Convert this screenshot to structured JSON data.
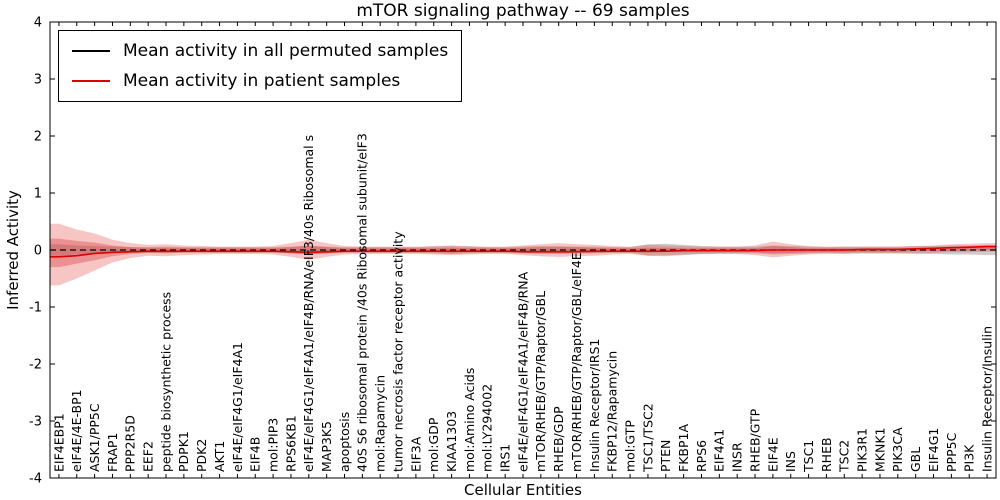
{
  "chart_data": {
    "type": "line",
    "title": "mTOR signaling pathway -- 69 samples",
    "xlabel": "Cellular Entities",
    "ylabel": "Inferred Activity",
    "ylim": [
      -4,
      4
    ],
    "yticks": [
      -4,
      -3,
      -2,
      -1,
      0,
      1,
      2,
      3,
      4
    ],
    "legend_position": "upper left",
    "grid": false,
    "categories": [
      "EIF4EBP1",
      "eIF4E/4E-BP1",
      "ASK1/PP5C",
      "FRAP1",
      "PPP2R5D",
      "EEF2",
      "peptide biosynthetic process",
      "PDPK1",
      "PDK2",
      "AKT1",
      "eIF4E/eIF4G1/eIF4A1",
      "EIF4B",
      "mol:PIP3",
      "RPS6KB1",
      "eIF4E/eIF4G1/eIF4A1/eIF4B/RNA/eIF3/40s Ribosomal s",
      "MAP3K5",
      "apoptosis",
      "40S S6 ribosomal protein /40s Ribosomal subunit/eIF3",
      "mol:Rapamycin",
      "tumor necrosis factor receptor activity",
      "EIF3A",
      "mol:GDP",
      "KIAA1303",
      "mol:Amino Acids",
      "mol:LY294002",
      "IRS1",
      "eIF4E/eIF4G1/eIF4A1/eIF4B/RNA",
      "mTOR/RHEB/GTP/Raptor/GBL",
      "RHEB/GDP",
      "mTOR/RHEB/GTP/Raptor/GBL/eIF4E",
      "Insulin Receptor/IRS1",
      "FKBP12/Rapamycin",
      "mol:GTP",
      "TSC1/TSC2",
      "PTEN",
      "FKBP1A",
      "RPS6",
      "EIF4A1",
      "INSR",
      "RHEB/GTP",
      "EIF4E",
      "INS",
      "TSC1",
      "RHEB",
      "TSC2",
      "PIK3R1",
      "MKNK1",
      "PIK3CA",
      "GBL",
      "EIF4G1",
      "PPP5C",
      "PI3K",
      "Insulin Receptor/Insulin"
    ],
    "series": [
      {
        "id": "permuted-mean",
        "label": "Mean activity in all permuted samples",
        "color": "#000000",
        "width": 1.2,
        "dash": "6,4",
        "values": [
          0,
          0,
          0,
          0,
          0,
          0,
          0,
          0,
          0,
          0,
          0,
          0,
          0,
          0,
          0,
          0,
          0,
          0,
          0,
          0,
          0,
          0,
          0,
          0,
          0,
          0,
          0,
          0,
          0,
          0,
          0,
          0,
          0,
          0,
          0,
          0,
          0,
          0,
          0,
          0,
          0,
          0,
          0,
          0,
          0,
          0,
          0,
          0,
          0,
          0,
          0,
          0,
          0
        ]
      },
      {
        "id": "patient-mean",
        "label": "Mean activity in patient samples",
        "color": "#dd0000",
        "width": 1.6,
        "dash": "",
        "values": [
          -0.12,
          -0.1,
          -0.06,
          -0.04,
          -0.03,
          -0.02,
          -0.02,
          -0.02,
          -0.02,
          -0.02,
          -0.02,
          -0.02,
          -0.02,
          -0.03,
          -0.04,
          -0.03,
          -0.02,
          -0.02,
          -0.02,
          -0.02,
          -0.02,
          -0.02,
          -0.02,
          -0.02,
          -0.02,
          -0.02,
          -0.03,
          -0.03,
          -0.03,
          -0.03,
          -0.02,
          -0.02,
          -0.02,
          -0.02,
          -0.02,
          -0.01,
          -0.01,
          -0.01,
          -0.01,
          -0.01,
          0.0,
          0.0,
          0.0,
          0.0,
          0.0,
          0.01,
          0.01,
          0.01,
          0.02,
          0.03,
          0.04,
          0.05,
          0.06
        ]
      }
    ],
    "bands": [
      {
        "id": "permuted-range",
        "color": "#909090",
        "opacity": 0.45,
        "hi": [
          0.1,
          0.08,
          0.07,
          0.06,
          0.05,
          0.05,
          0.06,
          0.05,
          0.05,
          0.05,
          0.05,
          0.05,
          0.05,
          0.06,
          0.07,
          0.06,
          0.05,
          0.05,
          0.05,
          0.05,
          0.05,
          0.06,
          0.07,
          0.06,
          0.05,
          0.05,
          0.06,
          0.07,
          0.07,
          0.06,
          0.06,
          0.05,
          0.05,
          0.1,
          0.11,
          0.09,
          0.07,
          0.06,
          0.06,
          0.06,
          0.08,
          0.07,
          0.06,
          0.05,
          0.06,
          0.06,
          0.06,
          0.06,
          0.07,
          0.07,
          0.08,
          0.08,
          0.09
        ],
        "lo": [
          -0.1,
          -0.08,
          -0.07,
          -0.06,
          -0.05,
          -0.05,
          -0.06,
          -0.05,
          -0.05,
          -0.05,
          -0.05,
          -0.05,
          -0.05,
          -0.06,
          -0.07,
          -0.06,
          -0.05,
          -0.05,
          -0.05,
          -0.05,
          -0.05,
          -0.06,
          -0.07,
          -0.06,
          -0.05,
          -0.05,
          -0.06,
          -0.07,
          -0.07,
          -0.06,
          -0.06,
          -0.05,
          -0.05,
          -0.1,
          -0.11,
          -0.09,
          -0.07,
          -0.06,
          -0.06,
          -0.06,
          -0.08,
          -0.07,
          -0.06,
          -0.05,
          -0.06,
          -0.06,
          -0.06,
          -0.06,
          -0.07,
          -0.07,
          -0.08,
          -0.08,
          -0.09
        ]
      },
      {
        "id": "patient-range-outer",
        "color": "#e84040",
        "opacity": 0.3,
        "hi": [
          0.46,
          0.36,
          0.29,
          0.18,
          0.12,
          0.09,
          0.1,
          0.08,
          0.07,
          0.06,
          0.06,
          0.06,
          0.07,
          0.12,
          0.18,
          0.12,
          0.07,
          0.06,
          0.06,
          0.06,
          0.06,
          0.07,
          0.08,
          0.07,
          0.06,
          0.06,
          0.08,
          0.1,
          0.12,
          0.1,
          0.09,
          0.07,
          0.06,
          0.09,
          0.08,
          0.07,
          0.06,
          0.06,
          0.06,
          0.08,
          0.15,
          0.1,
          0.07,
          0.06,
          0.06,
          0.06,
          0.06,
          0.06,
          0.07,
          0.08,
          0.1,
          0.11,
          0.12
        ],
        "lo": [
          -0.62,
          -0.5,
          -0.36,
          -0.22,
          -0.14,
          -0.1,
          -0.11,
          -0.09,
          -0.08,
          -0.07,
          -0.07,
          -0.07,
          -0.08,
          -0.12,
          -0.17,
          -0.12,
          -0.08,
          -0.07,
          -0.07,
          -0.07,
          -0.07,
          -0.08,
          -0.09,
          -0.08,
          -0.07,
          -0.07,
          -0.09,
          -0.11,
          -0.12,
          -0.11,
          -0.1,
          -0.08,
          -0.07,
          -0.1,
          -0.09,
          -0.08,
          -0.07,
          -0.07,
          -0.07,
          -0.09,
          -0.13,
          -0.1,
          -0.08,
          -0.07,
          -0.07,
          -0.06,
          -0.06,
          -0.06,
          -0.05,
          -0.05,
          -0.04,
          -0.04,
          -0.03
        ]
      },
      {
        "id": "patient-range-inner",
        "color": "#d83030",
        "opacity": 0.35,
        "hi": [
          0.2,
          0.16,
          0.13,
          0.08,
          0.05,
          0.04,
          0.04,
          0.04,
          0.03,
          0.03,
          0.03,
          0.03,
          0.03,
          0.05,
          0.08,
          0.05,
          0.03,
          0.03,
          0.03,
          0.03,
          0.03,
          0.03,
          0.04,
          0.03,
          0.03,
          0.03,
          0.04,
          0.05,
          0.05,
          0.05,
          0.04,
          0.03,
          0.03,
          0.04,
          0.04,
          0.03,
          0.03,
          0.03,
          0.03,
          0.03,
          0.07,
          0.05,
          0.03,
          0.03,
          0.03,
          0.03,
          0.03,
          0.03,
          0.03,
          0.04,
          0.05,
          0.05,
          0.06
        ],
        "lo": [
          -0.3,
          -0.24,
          -0.18,
          -0.11,
          -0.07,
          -0.05,
          -0.05,
          -0.04,
          -0.04,
          -0.04,
          -0.04,
          -0.04,
          -0.04,
          -0.06,
          -0.08,
          -0.06,
          -0.04,
          -0.04,
          -0.04,
          -0.04,
          -0.04,
          -0.04,
          -0.05,
          -0.04,
          -0.04,
          -0.04,
          -0.05,
          -0.05,
          -0.06,
          -0.05,
          -0.05,
          -0.04,
          -0.04,
          -0.05,
          -0.04,
          -0.04,
          -0.04,
          -0.04,
          -0.04,
          -0.04,
          -0.06,
          -0.05,
          -0.04,
          -0.04,
          -0.04,
          -0.03,
          -0.03,
          -0.03,
          -0.02,
          -0.02,
          -0.02,
          -0.01,
          0.0
        ]
      }
    ]
  }
}
